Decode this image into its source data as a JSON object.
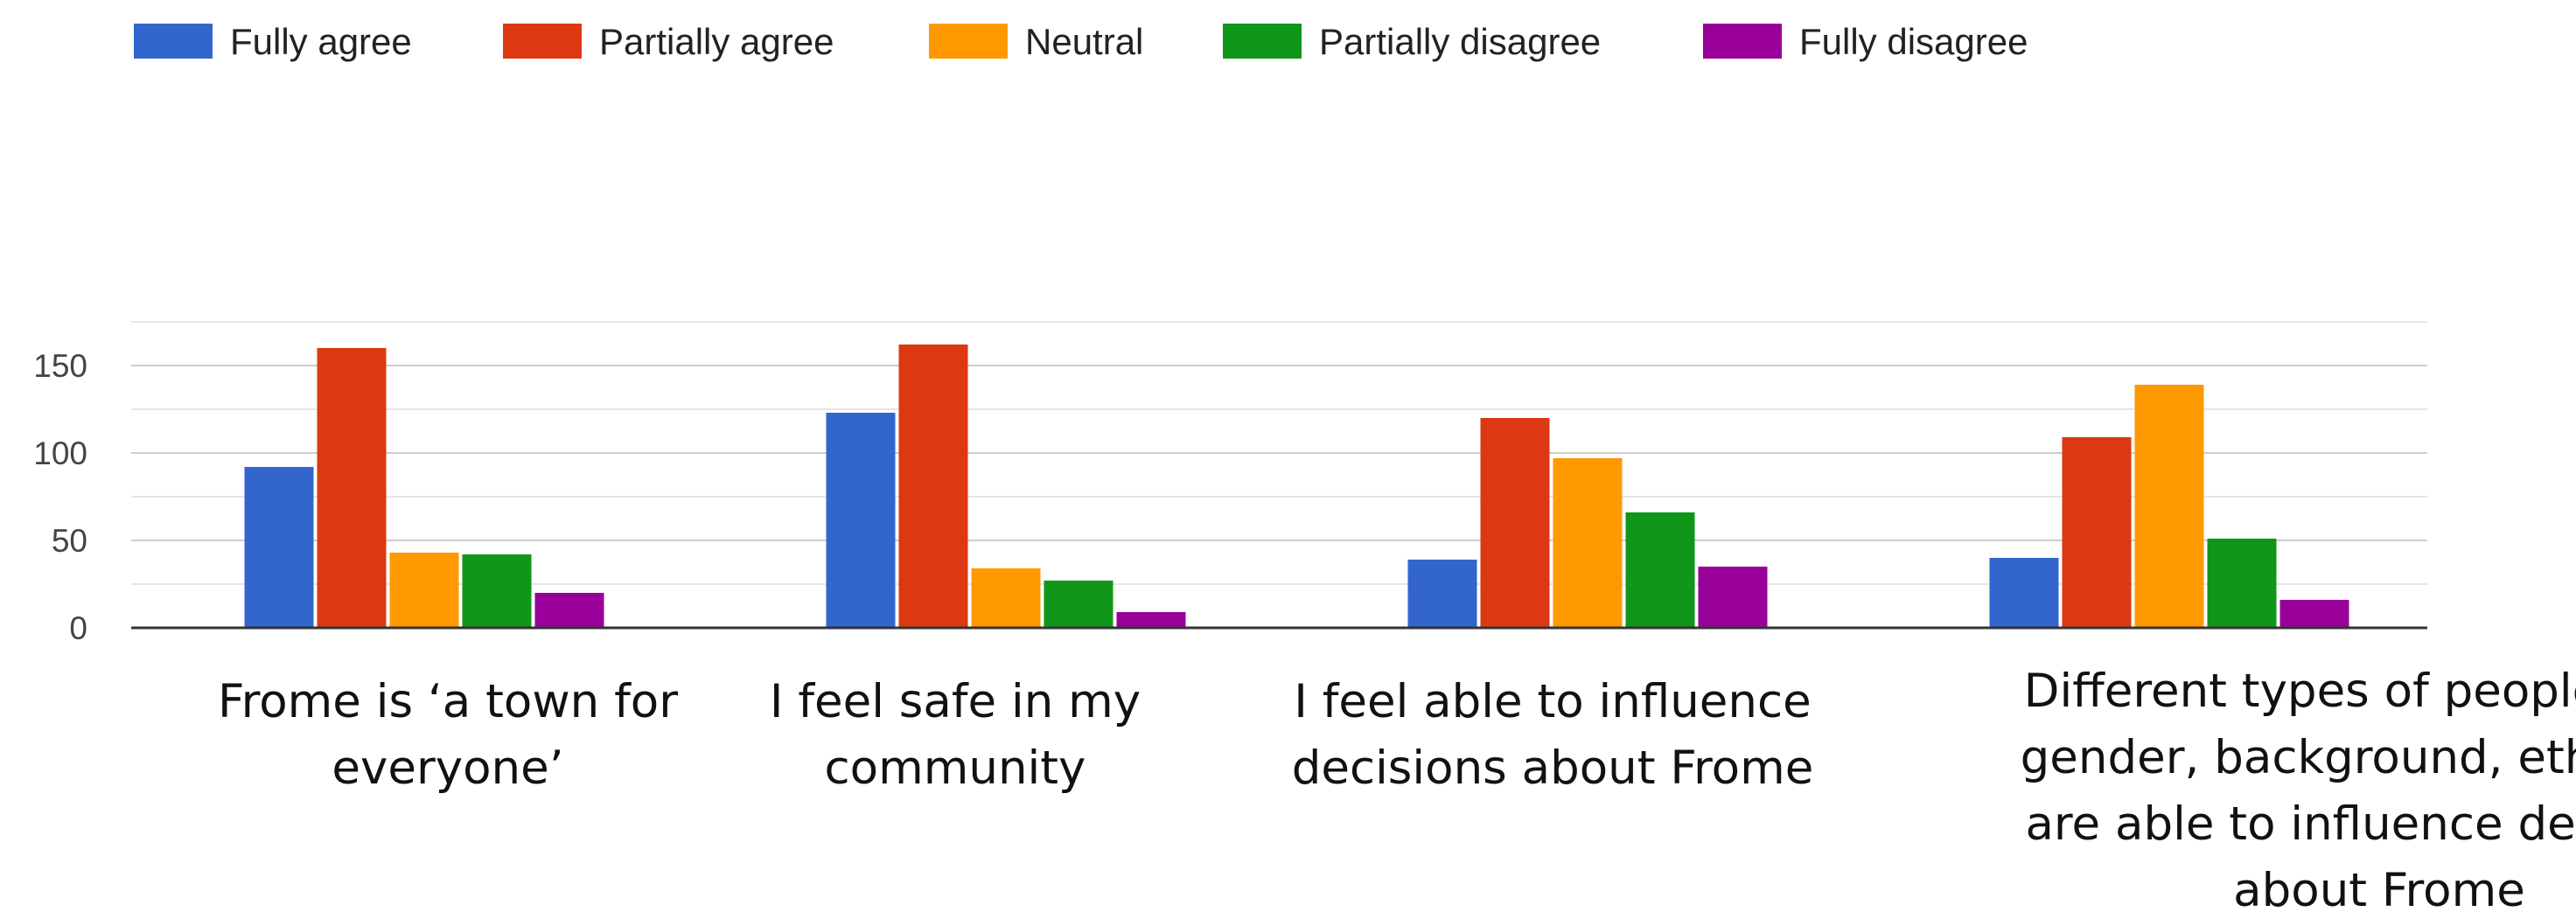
{
  "chart_data": {
    "type": "bar",
    "title": "",
    "xlabel": "",
    "ylabel": "",
    "ylim": [
      0,
      160
    ],
    "yticks": [
      0,
      50,
      100,
      150
    ],
    "grid": true,
    "legend_position": "top",
    "categories": [
      "Frome is ‘a town for everyone’",
      "I feel safe in my community",
      "I feel able to influence decisions about Frome",
      "Different types of people (age, gender, background, ethnicity) are able to influence decisions about Frome"
    ],
    "category_lines": [
      [
        "Frome is ‘a town for",
        "everyone’"
      ],
      [
        "I feel safe in my",
        "community"
      ],
      [
        "I feel able to influence",
        "decisions about Frome"
      ],
      [
        "Different types of people (age,",
        "gender, background, ethnicity)",
        "are able to influence decisions",
        "about Frome"
      ]
    ],
    "series": [
      {
        "name": "Fully agree",
        "color": "#3366cc",
        "values": [
          92,
          123,
          39,
          40
        ]
      },
      {
        "name": "Partially agree",
        "color": "#dc3912",
        "values": [
          160,
          162,
          120,
          109
        ]
      },
      {
        "name": "Neutral",
        "color": "#ff9900",
        "values": [
          43,
          34,
          97,
          139
        ]
      },
      {
        "name": "Partially disagree",
        "color": "#109618",
        "values": [
          42,
          27,
          66,
          51
        ]
      },
      {
        "name": "Fully disagree",
        "color": "#990099",
        "values": [
          20,
          9,
          35,
          16
        ]
      }
    ]
  }
}
